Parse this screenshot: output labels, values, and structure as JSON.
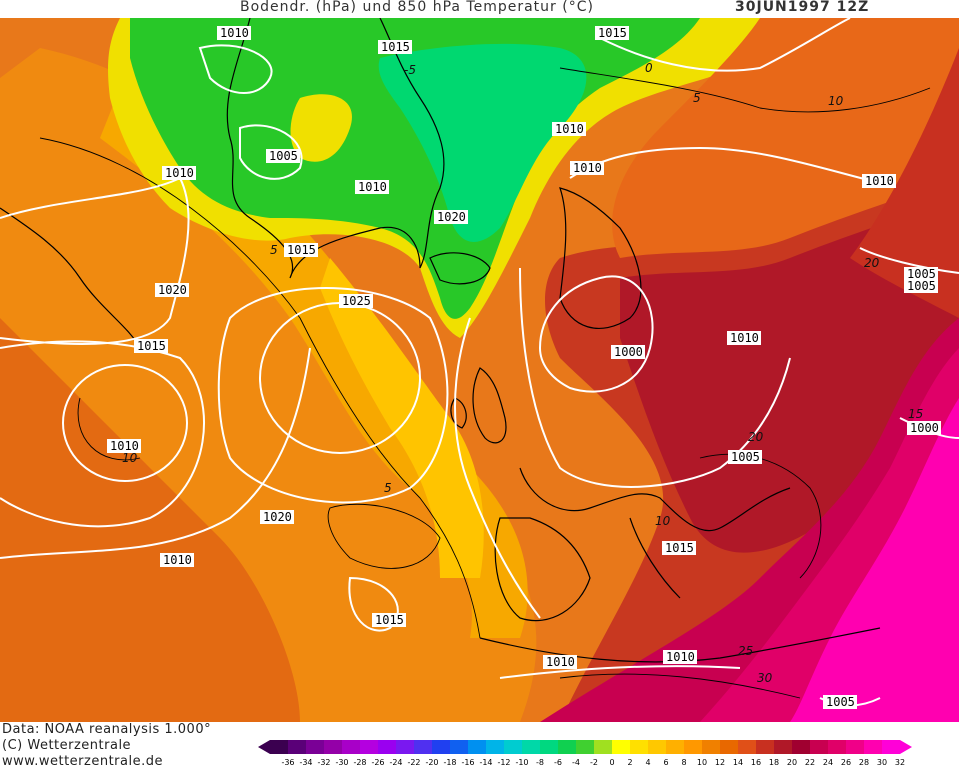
{
  "header": {
    "title": "Bodendr. (hPa) und 850 hPa Temperatur (°C)",
    "datetime": "30JUN1997 12Z"
  },
  "footer": {
    "line1": "Data: NOAA reanalysis 1.000°",
    "line2": "(C) Wetterzentrale",
    "line3": "www.wetterzentrale.de"
  },
  "map": {
    "isobar_labels": [
      "1010",
      "1015",
      "1005",
      "1010",
      "1010",
      "1015",
      "1020",
      "1025",
      "1015",
      "1010",
      "1010",
      "1010",
      "1020",
      "1015",
      "1010",
      "1020",
      "1015",
      "1010",
      "1010",
      "1000",
      "1010",
      "1005",
      "1005",
      "1000",
      "1005",
      "1015",
      "1010",
      "1010",
      "1005"
    ],
    "isotherm_labels": [
      "-5",
      "0",
      "5",
      "10",
      "-5",
      "5",
      "10",
      "20",
      "20",
      "25",
      "30",
      "10",
      "15",
      "5"
    ]
  },
  "colorbar": {
    "ticks": [
      "-36",
      "-34",
      "-32",
      "-30",
      "-28",
      "-26",
      "-24",
      "-22",
      "-20",
      "-18",
      "-16",
      "-14",
      "-12",
      "-10",
      "-8",
      "-6",
      "-4",
      "-2",
      "0",
      "2",
      "4",
      "6",
      "8",
      "10",
      "12",
      "14",
      "16",
      "18",
      "20",
      "22",
      "24",
      "26",
      "28",
      "30",
      "32"
    ],
    "colors": [
      "#3b0050",
      "#5a0078",
      "#7a0096",
      "#9400a8",
      "#a800c8",
      "#b400e0",
      "#9a00f0",
      "#7a18f0",
      "#5030f0",
      "#2040f0",
      "#1060f0",
      "#0090f0",
      "#00b4e8",
      "#00ccd0",
      "#00d8a8",
      "#00d880",
      "#10d050",
      "#40d030",
      "#a0e020",
      "#ffff00",
      "#ffe000",
      "#ffc800",
      "#ffb000",
      "#ff9800",
      "#f08000",
      "#e86800",
      "#e05018",
      "#c83020",
      "#b01828",
      "#a00030",
      "#c80050",
      "#e00068",
      "#f00088",
      "#ff00b0",
      "#ff00d8"
    ]
  }
}
